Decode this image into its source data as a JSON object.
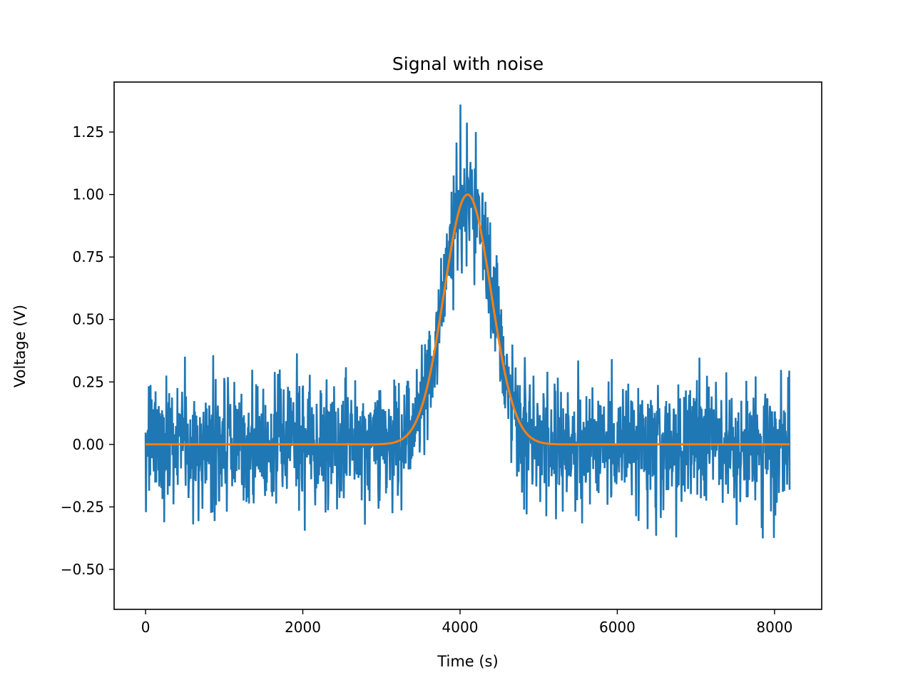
{
  "chart_data": {
    "type": "line",
    "title": "Signal with noise",
    "xlabel": "Time (s)",
    "ylabel": "Voltage (V)",
    "xlim": [
      -400,
      8600
    ],
    "ylim": [
      -0.66,
      1.45
    ],
    "grid": false,
    "legend": "none",
    "x_ticks": [
      {
        "value": 0,
        "label": "0"
      },
      {
        "value": 2000,
        "label": "2000"
      },
      {
        "value": 4000,
        "label": "4000"
      },
      {
        "value": 6000,
        "label": "6000"
      },
      {
        "value": 8000,
        "label": "8000"
      }
    ],
    "y_ticks": [
      {
        "value": -0.5,
        "label": "−0.50"
      },
      {
        "value": -0.25,
        "label": "−0.25"
      },
      {
        "value": 0.0,
        "label": "0.00"
      },
      {
        "value": 0.25,
        "label": "0.25"
      },
      {
        "value": 0.5,
        "label": "0.50"
      },
      {
        "value": 0.75,
        "label": "0.75"
      },
      {
        "value": 1.0,
        "label": "1.00"
      },
      {
        "value": 1.25,
        "label": "1.25"
      }
    ],
    "series": [
      {
        "color": "#1f77b4",
        "description": "Gaussian pulse plus noise",
        "x": [
          0,
          8192
        ],
        "peak_x": 4096,
        "peak_y": 1.0,
        "sigma": 300,
        "noise_std": 0.12,
        "approx_min": -0.57,
        "approx_max": 1.36
      },
      {
        "color": "#ff7f0e",
        "description": "Clean Gaussian pulse",
        "x": [
          0,
          8192
        ],
        "peak_x": 4096,
        "peak_y": 1.0,
        "sigma": 300
      }
    ]
  }
}
